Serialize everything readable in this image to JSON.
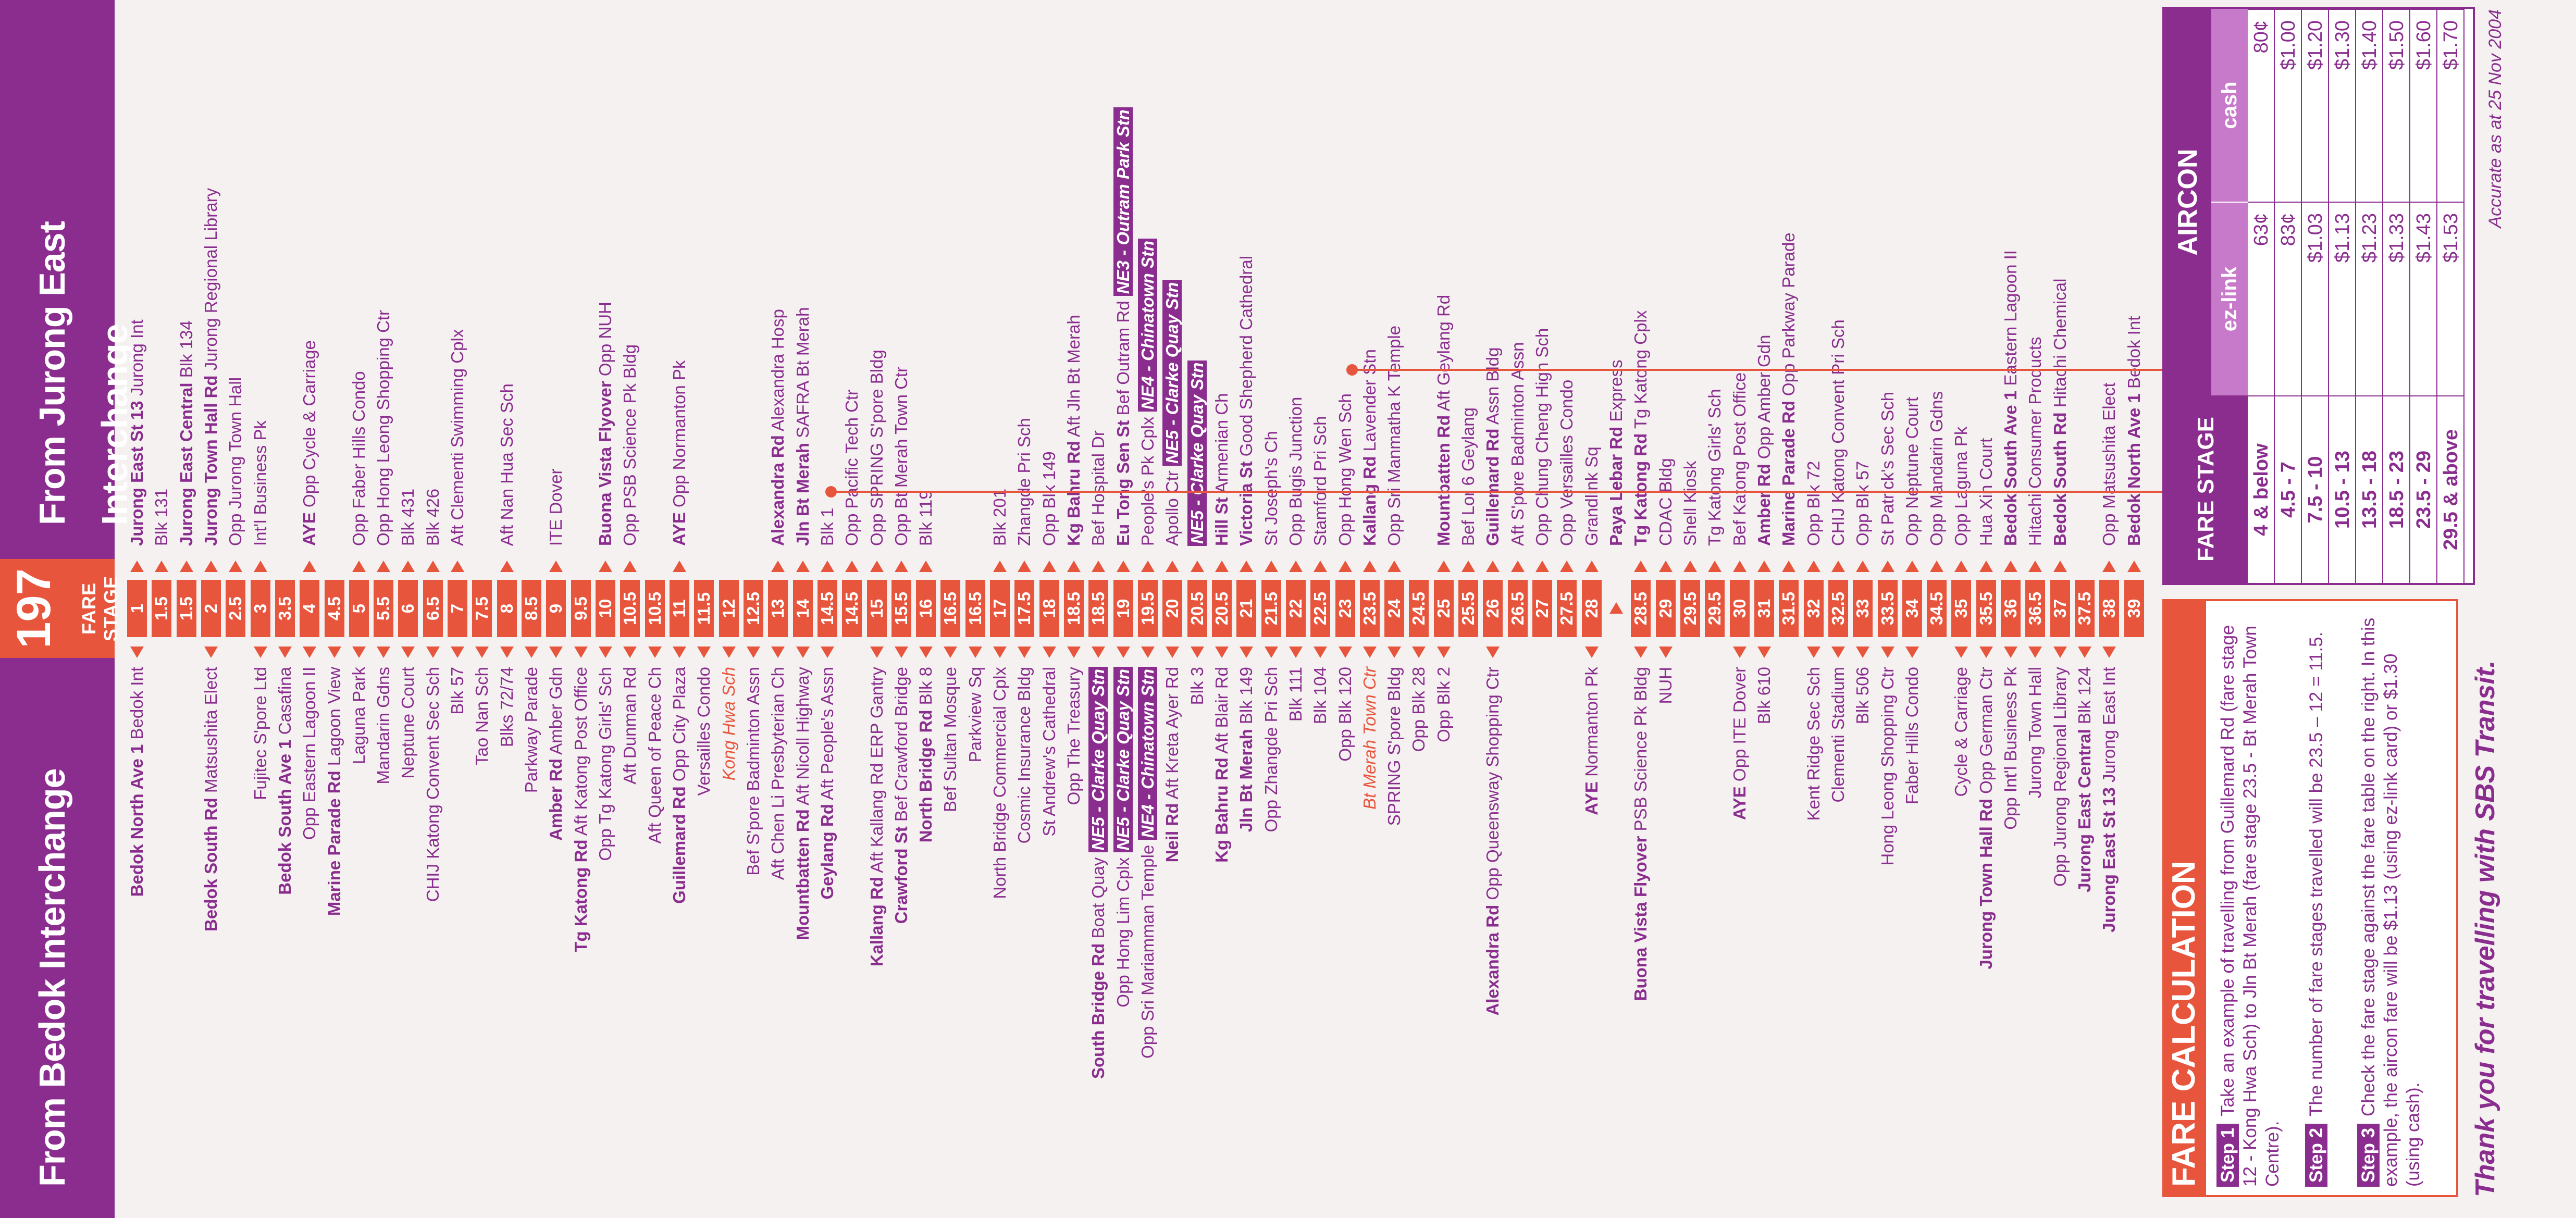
{
  "header": {
    "from_left": "From Bedok Interchange",
    "route_number": "197",
    "fare_stage_label": "FARE STAGE",
    "from_right": "From Jurong East Interchange"
  },
  "rows": [
    {
      "stage": "1",
      "left": "Bedok North Ave 1 Bedok Int",
      "right": "Jurong East St 13 Jurong Int"
    },
    {
      "stage": "1.5",
      "left": "",
      "right": "Blk 131"
    },
    {
      "stage": "1.5",
      "left": "",
      "right": "Jurong East Central Blk 134"
    },
    {
      "stage": "2",
      "left": "Bedok South Rd Matsushita Elect",
      "right": "Jurong Town Hall Rd Jurong Regional Library"
    },
    {
      "stage": "2.5",
      "left": "",
      "right": "Opp Jurong Town Hall"
    },
    {
      "stage": "3",
      "left": "Fujitec S'pore Ltd",
      "right": "Int'l Business Pk"
    },
    {
      "stage": "3.5",
      "left": "Bedok South Ave 1 Casafina",
      "right": ""
    },
    {
      "stage": "4",
      "left": "Opp Eastern Lagoon II",
      "right": "AYE Opp Cycle & Carriage"
    },
    {
      "stage": "4.5",
      "left": "Marine Parade Rd Lagoon View",
      "right": ""
    },
    {
      "stage": "5",
      "left": "Laguna Park",
      "right": "Opp Faber Hills Condo"
    },
    {
      "stage": "5.5",
      "left": "Mandarin Gdns",
      "right": "Opp Hong Leong Shopping Ctr"
    },
    {
      "stage": "6",
      "left": "Neptune Court",
      "right": "Blk 431"
    },
    {
      "stage": "6.5",
      "left": "CHIJ Katong Convent Sec Sch",
      "right": "Blk 426"
    },
    {
      "stage": "7",
      "left": "Blk 57",
      "right": "Aft Clementi Swimming Cplx"
    },
    {
      "stage": "7.5",
      "left": "Tao Nan Sch",
      "right": ""
    },
    {
      "stage": "8",
      "left": "Blks 72/74",
      "right": "Aft Nan Hua Sec Sch"
    },
    {
      "stage": "8.5",
      "left": "Parkway Parade",
      "right": ""
    },
    {
      "stage": "9",
      "left": "Amber Rd Amber Gdn",
      "right": "ITE Dover"
    },
    {
      "stage": "9.5",
      "left": "Tg Katong Rd Aft Katong Post Office",
      "right": ""
    },
    {
      "stage": "10",
      "left": "Opp Tg Katong Girls' Sch",
      "right": "Buona Vista Flyover Opp NUH"
    },
    {
      "stage": "10.5",
      "left": "Aft Dunman Rd",
      "right": "Opp PSB Science Pk Bldg"
    },
    {
      "stage": "10.5",
      "left": "Aft Queen of Peace Ch",
      "right": ""
    },
    {
      "stage": "11",
      "left": "Guillemard Rd Opp City Plaza",
      "right": "AYE Opp Normanton Pk"
    },
    {
      "stage": "11.5",
      "left": "Versailles Condo",
      "right": ""
    },
    {
      "stage": "12",
      "left": "Kong Hwa Sch",
      "right": ""
    },
    {
      "stage": "12.5",
      "left": "Bef S'pore Badminton Assn",
      "right": ""
    },
    {
      "stage": "13",
      "left": "Aft Chen Li Presbyterian Ch",
      "right": "Alexandra Rd Alexandra Hosp"
    },
    {
      "stage": "14",
      "left": "Mountbatten Rd Aft Nicoll Highway",
      "right": "Jln Bt Merah SAFRA Bt Merah"
    },
    {
      "stage": "14.5",
      "left": "Geylang Rd Aft People's Assn",
      "right": "Blk 1"
    },
    {
      "stage": "14.5",
      "left": "",
      "right": "Opp Pacific Tech Ctr"
    },
    {
      "stage": "15",
      "left": "Kallang Rd Aft Kallang Rd ERP Gantry",
      "right": "Opp SPRING S'pore Bldg"
    },
    {
      "stage": "15.5",
      "left": "Crawford St Bef Crawford Bridge",
      "right": "Opp Bt Merah Town Ctr"
    },
    {
      "stage": "16",
      "left": "North Bridge Rd Blk 8",
      "right": "Blk 119"
    },
    {
      "stage": "16.5",
      "left": "Bef Sultan Mosque",
      "right": ""
    },
    {
      "stage": "16.5",
      "left": "Parkview Sq",
      "right": ""
    },
    {
      "stage": "17",
      "left": "North Bridge Commercial Cplx",
      "right": "Blk 201"
    },
    {
      "stage": "17.5",
      "left": "Cosmic Insurance Bldg",
      "right": "Zhangde Pri Sch"
    },
    {
      "stage": "18",
      "left": "St Andrew's Cathedral",
      "right": "Opp Blk 149"
    },
    {
      "stage": "18.5",
      "left": "Opp The Treasury",
      "right": "Kg Bahru Rd Aft Jln Bt Merah"
    },
    {
      "stage": "18.5",
      "left": "South Bridge Rd Boat Quay NE5 - Clarke Quay Stn",
      "right": "Bef Hospital Dr"
    },
    {
      "stage": "19",
      "left": "Opp Hong Lim Cplx NE5 - Clarke Quay Stn",
      "right": "Eu Tong Sen St Bef Outram Rd NE3 - Outram Park Stn"
    },
    {
      "stage": "19.5",
      "left": "Opp Sri Mariamman Temple NE4 - Chinatown Stn",
      "right": "People's Pk Cplx NE4 - Chinatown Stn"
    },
    {
      "stage": "20",
      "left": "Neil Rd Aft Kreta Ayer Rd",
      "right": "Apollo Ctr NE5 - Clarke Quay Stn"
    },
    {
      "stage": "20.5",
      "left": "Blk 3",
      "right": "NE5 - Clarke Quay Stn"
    },
    {
      "stage": "20.5",
      "left": "Kg Bahru Rd Aft Blair Rd",
      "right": "Hill St Armenian Ch"
    },
    {
      "stage": "21",
      "left": "Jln Bt Merah Blk 149",
      "right": "Victoria St Good Shepherd Cathedral"
    },
    {
      "stage": "21.5",
      "left": "Opp Zhangde Pri Sch",
      "right": "St Joseph's Ch"
    },
    {
      "stage": "22",
      "left": "Blk 111",
      "right": "Opp Bugis Junction"
    },
    {
      "stage": "22.5",
      "left": "Blk 104",
      "right": "Stamford Pri Sch"
    },
    {
      "stage": "23",
      "left": "Opp Blk 120",
      "right": "Opp Hong Wen Sch"
    },
    {
      "stage": "23.5",
      "left": "Bt Merah Town Ctr",
      "right": "Kallang Rd Lavender Stn"
    },
    {
      "stage": "24",
      "left": "SPRING S'pore Bldg",
      "right": "Opp Sri Manmatha K Temple"
    },
    {
      "stage": "24.5",
      "left": "Opp Blk 28",
      "right": ""
    },
    {
      "stage": "25",
      "left": "Opp Blk 2",
      "right": "Mountbatten Rd Aft Geylang Rd"
    },
    {
      "stage": "25.5",
      "left": "",
      "right": "Bef Lor 6 Geylang"
    },
    {
      "stage": "26",
      "left": "Alexandra Rd Opp Queensway Shopping Ctr",
      "right": "Guillemard Rd Assn Bldg"
    },
    {
      "stage": "26.5",
      "left": "",
      "right": "Aft S'pore Badminton Assn"
    },
    {
      "stage": "27",
      "left": "",
      "right": "Opp Chung Cheng High Sch"
    },
    {
      "stage": "27.5",
      "left": "",
      "right": "Opp Versailles Condo"
    },
    {
      "stage": "28",
      "left": "AYE Normanton Pk",
      "right": "Grandlink Sq"
    },
    {
      "stage": "",
      "left": "",
      "right": "Paya Lebar Rd Express"
    },
    {
      "stage": "28.5",
      "left": "Buona Vista Flyover PSB Science Pk Bldg",
      "right": "Tg Katong Rd Tg Katong Cplx"
    },
    {
      "stage": "29",
      "left": "NUH",
      "right": "CDAC Bldg"
    },
    {
      "stage": "29.5",
      "left": "",
      "right": "Shell Kiosk"
    },
    {
      "stage": "29.5",
      "left": "",
      "right": "Tg Katong Girls' Sch"
    },
    {
      "stage": "30",
      "left": "AYE Opp ITE Dover",
      "right": "Bef Katong Post Office"
    },
    {
      "stage": "31",
      "left": "Blk 610",
      "right": "Amber Rd Opp Amber Gdn"
    },
    {
      "stage": "31.5",
      "left": "",
      "right": "Marine Parade Rd Opp Parkway Parade"
    },
    {
      "stage": "32",
      "left": "Kent Ridge Sec Sch",
      "right": "Opp Blk 72"
    },
    {
      "stage": "32.5",
      "left": "Clementi Stadium",
      "right": "CHIJ Katong Convent Pri Sch"
    },
    {
      "stage": "33",
      "left": "Blk 506",
      "right": "Opp Blk 57"
    },
    {
      "stage": "33.5",
      "left": "Hong Leong Shopping Ctr",
      "right": "St Patrick's Sec Sch"
    },
    {
      "stage": "34",
      "left": "Faber Hills Condo",
      "right": "Opp Neptune Court"
    },
    {
      "stage": "34.5",
      "left": "",
      "right": "Opp Mandarin Gdns"
    },
    {
      "stage": "35",
      "left": "Cycle & Carriage",
      "right": "Opp Laguna Pk"
    },
    {
      "stage": "35.5",
      "left": "Jurong Town Hall Rd Opp German Ctr",
      "right": "Hua Xin Court"
    },
    {
      "stage": "36",
      "left": "Opp Int'l Business Pk",
      "right": "Bedok South Ave 1 Eastern Lagoon II"
    },
    {
      "stage": "36.5",
      "left": "Jurong Town Hall",
      "right": "Hitachi Consumer Products"
    },
    {
      "stage": "37",
      "left": "Opp Jurong Regional Library",
      "right": "Bedok South Rd Hitachi Chemical"
    },
    {
      "stage": "37.5",
      "left": "Jurong East Central Blk 124",
      "right": ""
    },
    {
      "stage": "38",
      "left": "Jurong East St 13 Jurong East Int",
      "right": "Opp Matsushita Elect"
    },
    {
      "stage": "39",
      "left": "",
      "right": "Bedok North Ave 1 Bedok Int"
    }
  ],
  "fare_calc": {
    "title": "FARE CALCULATION",
    "step1_label": "Step 1",
    "step1_text": "Take an example of travelling from Guillemard Rd (fare stage 12 - Kong Hwa Sch) to Jln Bt Merah (fare stage 23.5 - Bt Merah Town Centre).",
    "step2_label": "Step 2",
    "step2_text": "The number of fare stages travelled will be 23.5 – 12 = 11.5.",
    "step3_label": "Step 3",
    "step3_text": "Check the fare stage against the fare table on the right. In this example, the aircon fare will be $1.13 (using ez-link card) or $1.30 (using cash)."
  },
  "thanks": "Thank you for travelling with SBS Transit.",
  "fare_table": {
    "col_stage": "FARE STAGE",
    "col_aircon": "AIRCON",
    "col_ezlink": "ez-link",
    "col_cash": "cash",
    "rows": [
      {
        "stage": "4 & below",
        "ezlink": "63¢",
        "cash": "80¢"
      },
      {
        "stage": "4.5 - 7",
        "ezlink": "83¢",
        "cash": "$1.00"
      },
      {
        "stage": "7.5 - 10",
        "ezlink": "$1.03",
        "cash": "$1.20"
      },
      {
        "stage": "10.5 - 13",
        "ezlink": "$1.13",
        "cash": "$1.30"
      },
      {
        "stage": "13.5 - 18",
        "ezlink": "$1.23",
        "cash": "$1.40"
      },
      {
        "stage": "18.5 - 23",
        "ezlink": "$1.33",
        "cash": "$1.50"
      },
      {
        "stage": "23.5 - 29",
        "ezlink": "$1.43",
        "cash": "$1.60"
      },
      {
        "stage": "29.5 & above",
        "ezlink": "$1.53",
        "cash": "$1.70"
      }
    ]
  },
  "accurate": "Accurate as at 25 Nov 2004",
  "colors": {
    "purple": "#8a2d8f",
    "orange": "#e8553d",
    "light_purple": "#c77ac9"
  }
}
